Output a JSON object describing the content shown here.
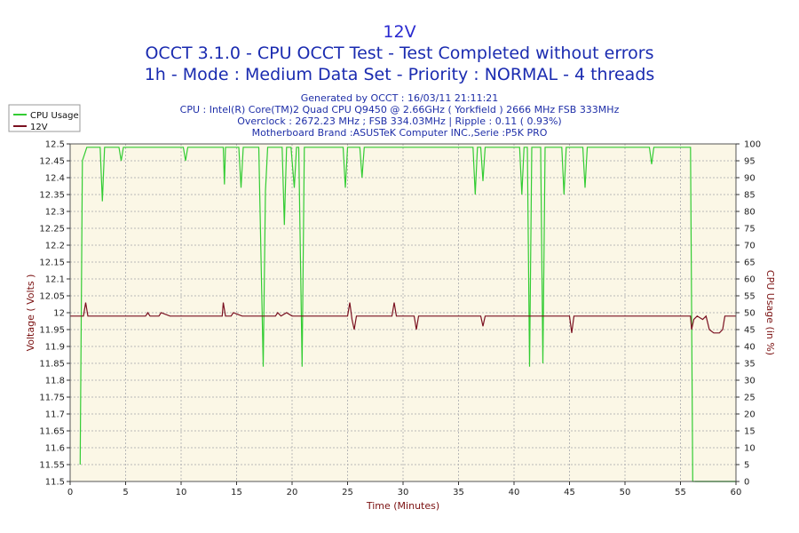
{
  "header": {
    "title": "12V",
    "subtitle_1": "OCCT 3.1.0 - CPU OCCT Test - Test Completed without errors",
    "subtitle_2": "1h - Mode : Medium Data Set - Priority : NORMAL - 4 threads"
  },
  "info": {
    "generated": "Generated by OCCT : 16/03/11 21:11:21",
    "cpu": "CPU : Intel(R) Core(TM)2 Quad CPU Q9450 @ 2.66GHz ( Yorkfield ) 2666 MHz FSB 333MHz",
    "overclock": "Overclock : 2672.23 MHz ; FSB 334.03MHz | Ripple : 0.11 ( 0.93%)",
    "motherboard": "Motherboard Brand :ASUSTeK Computer INC.,Serie :P5K PRO"
  },
  "colors": {
    "cpu_usage": "#33cc33",
    "voltage": "#7a1020",
    "plot_bg": "#fbf7e6",
    "grid": "#b8b8b8"
  },
  "chart_data": {
    "type": "line",
    "xlabel": "Time (Minutes)",
    "ylabel_left": "Voltage ( Volts )",
    "ylabel_right": "CPU Usage (in %)",
    "xlim": [
      0,
      60
    ],
    "ylim_left": [
      11.5,
      12.5
    ],
    "ylim_right": [
      0,
      100
    ],
    "x_ticks": [
      "0",
      "5",
      "10",
      "15",
      "20",
      "25",
      "30",
      "35",
      "40",
      "45",
      "50",
      "55",
      "60"
    ],
    "y_left_ticks": [
      "11.5",
      "11.55",
      "11.6",
      "11.65",
      "11.7",
      "11.75",
      "11.8",
      "11.85",
      "11.9",
      "11.95",
      "12",
      "12.05",
      "12.1",
      "12.15",
      "12.2",
      "12.25",
      "12.3",
      "12.35",
      "12.4",
      "12.45",
      "12.5"
    ],
    "y_right_ticks": [
      "0",
      "5",
      "10",
      "15",
      "20",
      "25",
      "30",
      "35",
      "40",
      "45",
      "50",
      "55",
      "60",
      "65",
      "70",
      "75",
      "80",
      "85",
      "90",
      "95",
      "100"
    ],
    "grid": true,
    "legend_position": "top-left",
    "series": [
      {
        "name": "CPU Usage",
        "axis": "right",
        "x": [
          0.9,
          1.1,
          1.3,
          1.5,
          1.8,
          2.2,
          2.7,
          2.9,
          3.1,
          3.5,
          4.0,
          4.4,
          4.6,
          4.8,
          5.5,
          6.5,
          7.5,
          8.5,
          9.5,
          10.2,
          10.4,
          10.6,
          11.5,
          12.5,
          13.0,
          13.8,
          13.9,
          14.0,
          14.5,
          15.2,
          15.4,
          15.6,
          16.5,
          17.0,
          17.4,
          17.6,
          17.8,
          18.5,
          19.1,
          19.3,
          19.5,
          19.9,
          20.2,
          20.4,
          20.6,
          20.9,
          21.1,
          21.4,
          22.0,
          23.0,
          24.0,
          24.6,
          24.8,
          25.0,
          25.6,
          26.1,
          26.3,
          26.5,
          27.5,
          28.5,
          29.5,
          30.5,
          31.5,
          32.5,
          33.5,
          34.5,
          35.5,
          36.3,
          36.5,
          36.7,
          37.0,
          37.2,
          37.4,
          37.8,
          38.5,
          39.0,
          40.0,
          40.5,
          40.7,
          40.9,
          41.2,
          41.4,
          41.6,
          42.0,
          42.4,
          42.6,
          42.8,
          43.5,
          44.3,
          44.5,
          44.7,
          45.5,
          46.2,
          46.4,
          46.6,
          47.5,
          48.5,
          49.5,
          50.5,
          51.5,
          52.2,
          52.4,
          52.6,
          53.5,
          54.5,
          55.5,
          55.9,
          56.1,
          56.3,
          57.0,
          58.0,
          59.0,
          60.0
        ],
        "values": [
          5,
          95,
          97,
          99,
          99,
          99,
          99,
          83,
          99,
          99,
          99,
          99,
          95,
          99,
          99,
          99,
          99,
          99,
          99,
          99,
          95,
          99,
          99,
          99,
          99,
          99,
          88,
          99,
          99,
          99,
          87,
          99,
          99,
          99,
          34,
          86,
          99,
          99,
          99,
          76,
          99,
          99,
          87,
          99,
          99,
          34,
          99,
          99,
          99,
          99,
          99,
          99,
          87,
          99,
          99,
          99,
          90,
          99,
          99,
          99,
          99,
          99,
          99,
          99,
          99,
          99,
          99,
          99,
          85,
          99,
          99,
          89,
          99,
          99,
          99,
          99,
          99,
          99,
          85,
          99,
          99,
          34,
          99,
          99,
          99,
          35,
          99,
          99,
          99,
          85,
          99,
          99,
          99,
          87,
          99,
          99,
          99,
          99,
          99,
          99,
          99,
          94,
          99,
          99,
          99,
          99,
          99,
          0,
          0,
          0,
          0,
          0,
          0
        ],
        "last_x": 56.3
      },
      {
        "name": "12V",
        "axis": "left",
        "x": [
          0,
          1.2,
          1.4,
          1.6,
          2.0,
          5.0,
          6.8,
          7.0,
          7.2,
          8.0,
          8.2,
          9.0,
          13.7,
          13.8,
          14.0,
          14.5,
          14.7,
          15.5,
          17.0,
          17.5,
          18.5,
          18.7,
          19.0,
          19.5,
          20.0,
          20.5,
          25.0,
          25.2,
          25.4,
          25.6,
          25.8,
          29.0,
          29.2,
          29.4,
          31.0,
          31.2,
          31.4,
          37.0,
          37.2,
          37.4,
          45.0,
          45.2,
          45.4,
          55.9,
          56.0,
          56.2,
          56.5,
          57.0,
          57.3,
          57.6,
          58.0,
          58.5,
          58.8,
          59.0,
          60.0
        ],
        "values": [
          11.99,
          11.99,
          12.03,
          11.99,
          11.99,
          11.99,
          11.99,
          12.0,
          11.99,
          11.99,
          12.0,
          11.99,
          11.99,
          12.03,
          11.99,
          11.99,
          12.0,
          11.99,
          11.99,
          11.99,
          11.99,
          12.0,
          11.99,
          12.0,
          11.99,
          11.99,
          11.99,
          12.03,
          11.98,
          11.95,
          11.99,
          11.99,
          12.03,
          11.99,
          11.99,
          11.95,
          11.99,
          11.99,
          11.96,
          11.99,
          11.99,
          11.94,
          11.99,
          11.99,
          11.95,
          11.98,
          11.99,
          11.98,
          11.99,
          11.95,
          11.94,
          11.94,
          11.95,
          11.99,
          11.99
        ]
      }
    ]
  }
}
